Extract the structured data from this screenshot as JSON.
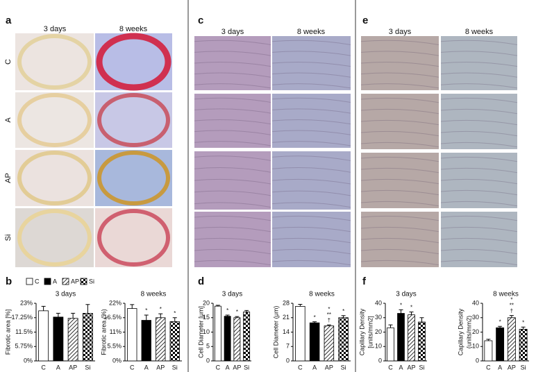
{
  "panels": {
    "a": {
      "label": "a",
      "columns": [
        "3 days",
        "8 weeks"
      ],
      "rows": [
        "C",
        "A",
        "AP",
        "Si"
      ]
    },
    "c": {
      "label": "c",
      "columns": [
        "3 days",
        "8 weeks"
      ]
    },
    "e": {
      "label": "e",
      "columns": [
        "3 days",
        "8 weeks"
      ]
    },
    "b": {
      "label": "b"
    },
    "d": {
      "label": "d"
    },
    "f": {
      "label": "f"
    }
  },
  "chart_data": [
    {
      "type": "bar",
      "title": "3 days",
      "ylabel": [
        "Fibrotic area [%]"
      ],
      "categories": [
        "C",
        "A",
        "AP",
        "Si"
      ],
      "values": [
        20,
        17.5,
        17,
        19
      ],
      "errors": [
        1.8,
        1.5,
        2,
        3.5
      ],
      "fills": [
        "white",
        "black",
        "hatch",
        "check"
      ],
      "ylim": [
        0,
        23
      ],
      "yticks": [
        {
          "value": 0,
          "label": "0%"
        },
        {
          "value": 5.75,
          "label": "5.75%"
        },
        {
          "value": 11.5,
          "label": "11.5%"
        },
        {
          "value": 17.25,
          "label": "17.25%"
        },
        {
          "value": 23,
          "label": "23%"
        }
      ]
    },
    {
      "type": "bar",
      "title": "8 weeks",
      "ylabel": [
        "Fibrotic area (%)"
      ],
      "categories": [
        "C",
        "A",
        "AP",
        "Si"
      ],
      "values": [
        20,
        15.5,
        16.5,
        15
      ],
      "errors": [
        1.5,
        2,
        1.5,
        1.5
      ],
      "fills": [
        "white",
        "black",
        "hatch",
        "check"
      ],
      "annotations": [
        null,
        [
          "*"
        ],
        [
          "*"
        ],
        [
          "*"
        ]
      ],
      "ylim": [
        0,
        22
      ],
      "yticks": [
        {
          "value": 0,
          "label": "0%"
        },
        {
          "value": 5.5,
          "label": "5.5%"
        },
        {
          "value": 11,
          "label": "11%"
        },
        {
          "value": 16.5,
          "label": "16.5%"
        },
        {
          "value": 22,
          "label": "22%"
        }
      ]
    },
    {
      "type": "bar",
      "title": "3 days",
      "ylabel": [
        "Cell Diameter [μm]"
      ],
      "categories": [
        "C",
        "A",
        "AP",
        "Si"
      ],
      "values": [
        19,
        15.5,
        15,
        17
      ],
      "errors": [
        0.3,
        0.4,
        0.4,
        0.5
      ],
      "fills": [
        "white",
        "black",
        "hatch",
        "check"
      ],
      "annotations": [
        null,
        [
          "*"
        ],
        [
          "*"
        ],
        null
      ],
      "ylim": [
        0,
        20
      ],
      "yticks": [
        0,
        5,
        10,
        15,
        20
      ]
    },
    {
      "type": "bar",
      "title": "8 weeks",
      "ylabel": [
        "Cell Diameter (μm)"
      ],
      "categories": [
        "C",
        "A",
        "AP",
        "Si"
      ],
      "values": [
        26.5,
        18.5,
        17,
        21
      ],
      "errors": [
        1,
        0.5,
        0.5,
        1
      ],
      "fills": [
        "white",
        "black",
        "hatch",
        "check"
      ],
      "annotations": [
        null,
        [
          "*"
        ],
        [
          "*",
          "**",
          "†"
        ],
        [
          "*"
        ]
      ],
      "ylim": [
        0,
        28
      ],
      "yticks": [
        0,
        7,
        14,
        21,
        28
      ]
    },
    {
      "type": "bar",
      "title": "3 days",
      "ylabel": [
        "Capillary Density",
        "[units/mm2]"
      ],
      "categories": [
        "C",
        "A",
        "AP",
        "Si"
      ],
      "values": [
        23,
        33,
        32,
        27
      ],
      "errors": [
        2,
        2.5,
        2,
        3
      ],
      "fills": [
        "white",
        "black",
        "hatch",
        "check"
      ],
      "annotations": [
        null,
        [
          "*"
        ],
        [
          "*"
        ],
        null
      ],
      "ylim": [
        0,
        40
      ],
      "yticks": [
        0,
        10,
        20,
        30,
        40
      ]
    },
    {
      "type": "bar",
      "title": "8 weeks",
      "ylabel": [
        "Capillary Density",
        "(units/mm2)"
      ],
      "categories": [
        "C",
        "A",
        "AP",
        "Si"
      ],
      "values": [
        14,
        23,
        30,
        22
      ],
      "errors": [
        1,
        1,
        1.5,
        1.5
      ],
      "fills": [
        "white",
        "black",
        "hatch",
        "check"
      ],
      "annotations": [
        null,
        [
          "*"
        ],
        [
          "*",
          "**",
          "†"
        ],
        [
          "*"
        ]
      ],
      "ylim": [
        0,
        40
      ],
      "yticks": [
        0,
        10,
        20,
        30,
        40
      ]
    }
  ]
}
